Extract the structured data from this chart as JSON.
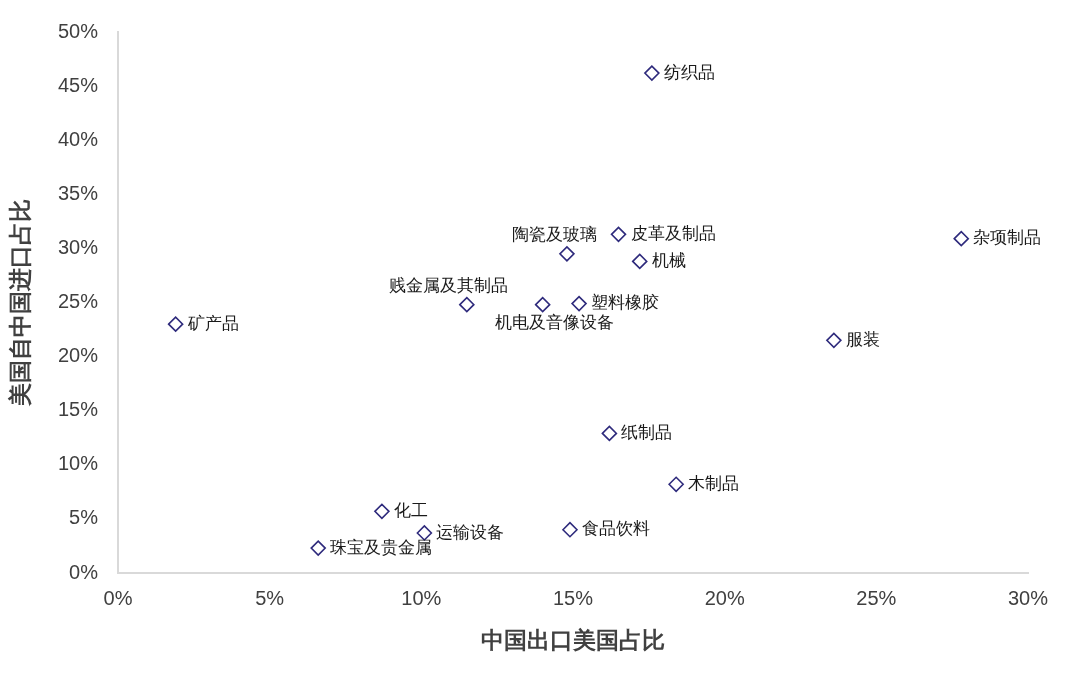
{
  "chart_data": {
    "type": "scatter",
    "xlabel": "中国出口美国占比",
    "ylabel": "美国自中国进口占比",
    "marker": "diamond",
    "xlim": [
      0,
      30
    ],
    "xticks": [
      {
        "value": 0,
        "label": "0%"
      },
      {
        "value": 5,
        "label": "5%"
      },
      {
        "value": 10,
        "label": "10%"
      },
      {
        "value": 15,
        "label": "15%"
      },
      {
        "value": 20,
        "label": "20%"
      },
      {
        "value": 25,
        "label": "25%"
      },
      {
        "value": 30,
        "label": "30%"
      }
    ],
    "ylim": [
      0,
      50
    ],
    "yticks": [
      {
        "value": 0,
        "label": "0%"
      },
      {
        "value": 5,
        "label": "5%"
      },
      {
        "value": 10,
        "label": "10%"
      },
      {
        "value": 15,
        "label": "15%"
      },
      {
        "value": 20,
        "label": "20%"
      },
      {
        "value": 25,
        "label": "25%"
      },
      {
        "value": 30,
        "label": "30%"
      },
      {
        "value": 35,
        "label": "35%"
      },
      {
        "value": 40,
        "label": "40%"
      },
      {
        "value": 45,
        "label": "45%"
      },
      {
        "value": 50,
        "label": "50%"
      }
    ],
    "series": [
      {
        "name": "纺织品",
        "color": "#2e2a7c",
        "x": [
          17.6
        ],
        "values": [
          46.2
        ]
      },
      {
        "name": "皮革及制品",
        "color": "#2e2a7c",
        "x": [
          16.5
        ],
        "values": [
          31.3
        ]
      },
      {
        "name": "杂项制品",
        "color": "#2e2a7c",
        "x": [
          27.8
        ],
        "values": [
          30.9
        ]
      },
      {
        "name": "陶瓷及玻璃",
        "color": "#2e2a7c",
        "x": [
          14.8
        ],
        "values": [
          29.5
        ]
      },
      {
        "name": "机械",
        "color": "#2e2a7c",
        "x": [
          17.2
        ],
        "values": [
          28.8
        ]
      },
      {
        "name": "贱金属及其制品",
        "color": "#2e2a7c",
        "x": [
          11.5
        ],
        "values": [
          24.8
        ]
      },
      {
        "name": "机电及音像设备",
        "color": "#2e2a7c",
        "x": [
          14.0
        ],
        "values": [
          24.8
        ]
      },
      {
        "name": "塑料橡胶",
        "color": "#2e2a7c",
        "x": [
          15.2
        ],
        "values": [
          24.9
        ]
      },
      {
        "name": "矿产品",
        "color": "#2e2a7c",
        "x": [
          1.9
        ],
        "values": [
          23.0
        ]
      },
      {
        "name": "服装",
        "color": "#2e2a7c",
        "x": [
          23.6
        ],
        "values": [
          21.5
        ]
      },
      {
        "name": "纸制品",
        "color": "#2e2a7c",
        "x": [
          16.2
        ],
        "values": [
          12.9
        ]
      },
      {
        "name": "木制品",
        "color": "#2e2a7c",
        "x": [
          18.4
        ],
        "values": [
          8.2
        ]
      },
      {
        "name": "化工",
        "color": "#2e2a7c",
        "x": [
          8.7
        ],
        "values": [
          5.7
        ]
      },
      {
        "name": "食品饮料",
        "color": "#2e2a7c",
        "x": [
          14.9
        ],
        "values": [
          4.0
        ]
      },
      {
        "name": "运输设备",
        "color": "#2e2a7c",
        "x": [
          10.1
        ],
        "values": [
          3.7
        ]
      },
      {
        "name": "珠宝及贵金属",
        "color": "#2e2a7c",
        "x": [
          6.6
        ],
        "values": [
          2.3
        ]
      }
    ]
  }
}
